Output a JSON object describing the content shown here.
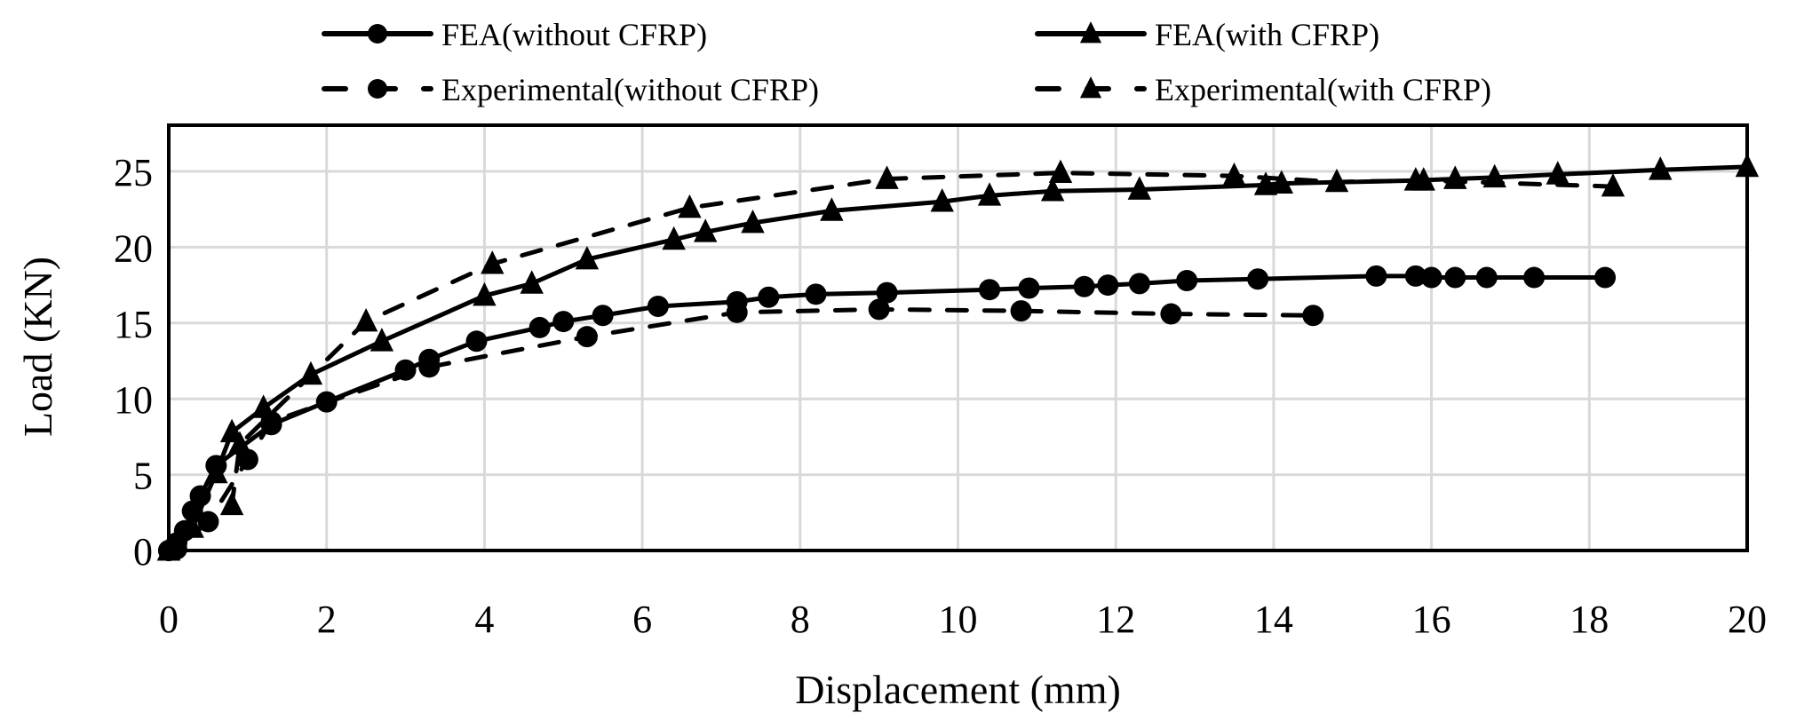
{
  "chart_data": {
    "type": "line",
    "title": "",
    "xlabel": "Displacement (mm)",
    "ylabel": "Load (KN)",
    "xlim": [
      0,
      20
    ],
    "ylim": [
      0,
      28
    ],
    "xticks": [
      0,
      2,
      4,
      6,
      8,
      10,
      12,
      14,
      16,
      18,
      20
    ],
    "yticks": [
      0,
      5,
      10,
      15,
      20,
      25
    ],
    "grid": true,
    "legend_position": "top",
    "series": [
      {
        "name": "FEA(without CFRP)",
        "line": "solid",
        "marker": "circle",
        "x": [
          0,
          0.1,
          0.2,
          0.3,
          0.4,
          0.6,
          1.3,
          2.0,
          3.0,
          3.3,
          3.9,
          4.7,
          5.0,
          5.5,
          6.2,
          7.2,
          7.6,
          8.2,
          9.1,
          10.4,
          10.9,
          11.6,
          11.9,
          12.3,
          12.9,
          13.8,
          15.3,
          15.8,
          16.0,
          16.3,
          16.7,
          17.3,
          18.2
        ],
        "y": [
          0,
          0.5,
          1.3,
          2.6,
          3.6,
          5.6,
          8.3,
          9.8,
          11.9,
          12.6,
          13.8,
          14.7,
          15.1,
          15.5,
          16.1,
          16.4,
          16.7,
          16.9,
          17.0,
          17.2,
          17.3,
          17.4,
          17.5,
          17.6,
          17.8,
          17.9,
          18.1,
          18.1,
          18.0,
          18.0,
          18.0,
          18.0,
          18.0
        ]
      },
      {
        "name": "FEA(with CFRP)",
        "line": "solid",
        "marker": "triangle",
        "x": [
          0,
          0.1,
          0.3,
          0.6,
          0.8,
          1.2,
          1.8,
          2.7,
          4.0,
          4.6,
          5.3,
          6.4,
          6.8,
          7.4,
          8.4,
          9.8,
          10.4,
          11.2,
          12.3,
          13.9,
          14.1,
          15.8,
          16.3,
          16.8,
          17.6,
          18.9,
          20.0
        ],
        "y": [
          0,
          0.6,
          1.5,
          5.1,
          7.8,
          9.4,
          11.6,
          13.8,
          16.8,
          17.6,
          19.2,
          20.5,
          21.0,
          21.6,
          22.4,
          23.0,
          23.4,
          23.7,
          23.8,
          24.1,
          24.2,
          24.4,
          24.5,
          24.6,
          24.8,
          25.1,
          25.3
        ]
      },
      {
        "name": "Experimental(without CFRP)",
        "line": "dashed",
        "marker": "circle",
        "x": [
          0,
          0.1,
          0.5,
          1.0,
          1.3,
          3.3,
          5.3,
          7.2,
          9.0,
          10.8,
          12.7,
          14.5
        ],
        "y": [
          0,
          0.1,
          1.9,
          6.0,
          8.5,
          12.1,
          14.1,
          15.7,
          15.9,
          15.8,
          15.6,
          15.5
        ]
      },
      {
        "name": "Experimental(with CFRP)",
        "line": "dashed",
        "marker": "triangle",
        "x": [
          0,
          0.8,
          0.9,
          2.5,
          4.1,
          6.6,
          9.1,
          11.3,
          13.5,
          14.8,
          15.9,
          18.3
        ],
        "y": [
          0,
          3.0,
          7.0,
          15.1,
          18.9,
          22.6,
          24.5,
          24.9,
          24.7,
          24.3,
          24.4,
          24.0
        ]
      }
    ]
  }
}
